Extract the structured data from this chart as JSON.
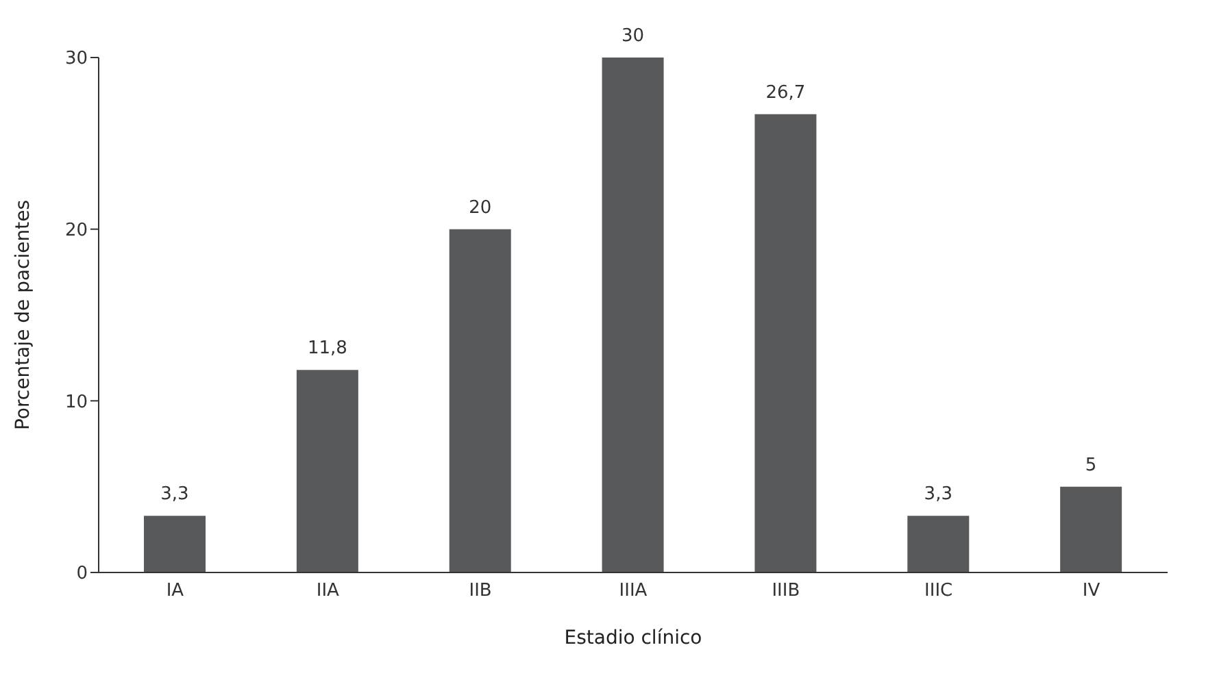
{
  "chart_data": {
    "type": "bar",
    "xlabel": "Estadio clínico",
    "ylabel": "Porcentaje de pacientes",
    "categories": [
      "IA",
      "IIA",
      "IIB",
      "IIIA",
      "IIIB",
      "IIIC",
      "IV"
    ],
    "values": [
      3.3,
      11.8,
      20,
      30,
      26.7,
      3.3,
      5
    ],
    "value_labels": [
      "3,3",
      "11,8",
      "20",
      "30",
      "26,7",
      "3,3",
      "5"
    ],
    "color": "#58595b",
    "ylim": [
      0,
      30
    ],
    "yticks": [
      0,
      10,
      20,
      30
    ],
    "grid": false
  }
}
